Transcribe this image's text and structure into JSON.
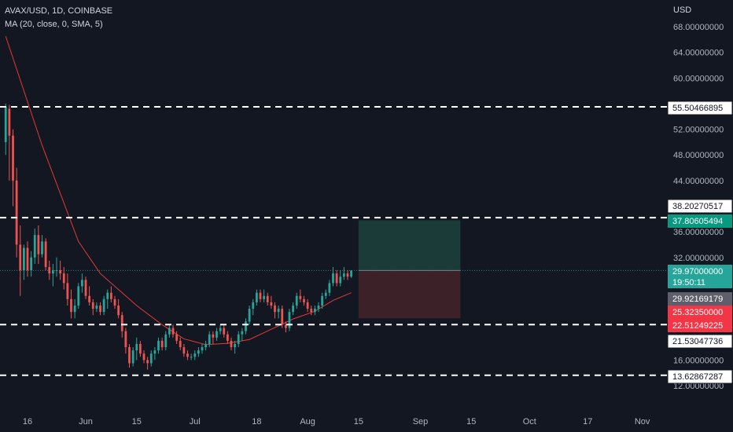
{
  "header": {
    "symbol_line": "AVAX/USD, 1D, COINBASE",
    "indicator_line": "MA (20, close, 0, SMA, 5)",
    "currency": "USD"
  },
  "colors": {
    "background": "#131722",
    "up": "#26a69a",
    "down": "#ef5350",
    "ma": "#e53935",
    "target_zone": "#1b3b38",
    "stop_zone": "#3d2129",
    "levels": "#ffffff",
    "axis_text": "#b2b5be"
  },
  "chart_data": {
    "type": "candlestick",
    "title": "AVAX/USD, 1D, COINBASE",
    "ylabel": "USD",
    "ylim": [
      11.2,
      70.5
    ],
    "y_ticks": [
      "68.00000000",
      "64.00000000",
      "60.00000000",
      "52.00000000",
      "48.00000000",
      "44.00000000",
      "36.00000000",
      "32.00000000",
      "16.00000000",
      "12.00000000"
    ],
    "x_ticks": [
      "16",
      "Jun",
      "15",
      "Jul",
      "18",
      "Aug",
      "15",
      "Sep",
      "15",
      "Oct",
      "17",
      "Nov"
    ],
    "ma_settings": {
      "length": 20,
      "source": "close",
      "offset": 0,
      "type": "SMA"
    },
    "start_date": "2022-05-10",
    "candles": [
      {
        "date": "2022-05-10",
        "o": 50.0,
        "h": 56.0,
        "l": 48.0,
        "c": 55.5
      },
      {
        "date": "2022-05-11",
        "o": 55.2,
        "h": 55.8,
        "l": 44.0,
        "c": 51.0
      },
      {
        "date": "2022-05-12",
        "o": 51.0,
        "h": 52.0,
        "l": 40.0,
        "c": 44.0
      },
      {
        "date": "2022-05-13",
        "o": 44.0,
        "h": 46.0,
        "l": 32.0,
        "c": 34.0
      },
      {
        "date": "2022-05-14",
        "o": 34.0,
        "h": 37.0,
        "l": 26.0,
        "c": 30.0
      },
      {
        "date": "2022-05-15",
        "o": 30.0,
        "h": 34.0,
        "l": 28.5,
        "c": 33.5
      },
      {
        "date": "2022-05-16",
        "o": 33.5,
        "h": 34.5,
        "l": 29.0,
        "c": 30.0
      },
      {
        "date": "2022-05-17",
        "o": 30.0,
        "h": 33.0,
        "l": 29.0,
        "c": 32.0
      },
      {
        "date": "2022-05-18",
        "o": 32.0,
        "h": 36.5,
        "l": 31.0,
        "c": 35.5
      },
      {
        "date": "2022-05-19",
        "o": 35.5,
        "h": 37.0,
        "l": 31.0,
        "c": 32.5
      },
      {
        "date": "2022-05-20",
        "o": 32.5,
        "h": 35.5,
        "l": 32.0,
        "c": 34.5
      },
      {
        "date": "2022-05-21",
        "o": 34.5,
        "h": 35.0,
        "l": 30.0,
        "c": 30.5
      },
      {
        "date": "2022-05-22",
        "o": 30.5,
        "h": 31.5,
        "l": 28.5,
        "c": 29.5
      },
      {
        "date": "2022-05-23",
        "o": 29.5,
        "h": 31.0,
        "l": 27.5,
        "c": 30.0
      },
      {
        "date": "2022-05-24",
        "o": 30.0,
        "h": 32.0,
        "l": 29.0,
        "c": 30.0
      },
      {
        "date": "2022-05-25",
        "o": 30.0,
        "h": 31.5,
        "l": 28.5,
        "c": 29.5
      },
      {
        "date": "2022-05-26",
        "o": 29.5,
        "h": 30.5,
        "l": 27.0,
        "c": 28.0
      },
      {
        "date": "2022-05-27",
        "o": 28.0,
        "h": 29.5,
        "l": 24.5,
        "c": 25.5
      },
      {
        "date": "2022-05-28",
        "o": 25.5,
        "h": 27.0,
        "l": 22.5,
        "c": 23.5
      },
      {
        "date": "2022-05-29",
        "o": 23.5,
        "h": 25.5,
        "l": 22.5,
        "c": 24.5
      },
      {
        "date": "2022-05-30",
        "o": 24.5,
        "h": 28.0,
        "l": 24.0,
        "c": 27.5
      },
      {
        "date": "2022-05-31",
        "o": 27.5,
        "h": 29.5,
        "l": 26.5,
        "c": 28.5
      },
      {
        "date": "2022-06-01",
        "o": 28.5,
        "h": 29.0,
        "l": 25.5,
        "c": 26.0
      },
      {
        "date": "2022-06-02",
        "o": 26.0,
        "h": 27.5,
        "l": 24.5,
        "c": 25.0
      },
      {
        "date": "2022-06-03",
        "o": 25.0,
        "h": 25.5,
        "l": 23.0,
        "c": 24.0
      },
      {
        "date": "2022-06-04",
        "o": 24.0,
        "h": 25.0,
        "l": 23.5,
        "c": 24.5
      },
      {
        "date": "2022-06-05",
        "o": 24.5,
        "h": 25.0,
        "l": 23.0,
        "c": 23.5
      },
      {
        "date": "2022-06-06",
        "o": 23.5,
        "h": 26.0,
        "l": 23.0,
        "c": 25.5
      },
      {
        "date": "2022-06-07",
        "o": 25.5,
        "h": 27.0,
        "l": 24.0,
        "c": 26.5
      },
      {
        "date": "2022-06-08",
        "o": 26.5,
        "h": 27.5,
        "l": 25.0,
        "c": 25.5
      },
      {
        "date": "2022-06-09",
        "o": 25.5,
        "h": 26.0,
        "l": 24.0,
        "c": 24.5
      },
      {
        "date": "2022-06-10",
        "o": 24.5,
        "h": 25.5,
        "l": 22.5,
        "c": 23.0
      },
      {
        "date": "2022-06-11",
        "o": 23.0,
        "h": 23.5,
        "l": 19.5,
        "c": 20.5
      },
      {
        "date": "2022-06-12",
        "o": 20.5,
        "h": 21.0,
        "l": 17.0,
        "c": 18.0
      },
      {
        "date": "2022-06-13",
        "o": 18.0,
        "h": 18.5,
        "l": 14.8,
        "c": 15.5
      },
      {
        "date": "2022-06-14",
        "o": 15.5,
        "h": 18.0,
        "l": 15.0,
        "c": 17.5
      },
      {
        "date": "2022-06-15",
        "o": 17.5,
        "h": 19.5,
        "l": 16.0,
        "c": 18.5
      },
      {
        "date": "2022-06-16",
        "o": 18.5,
        "h": 19.0,
        "l": 16.5,
        "c": 17.0
      },
      {
        "date": "2022-06-17",
        "o": 17.0,
        "h": 17.5,
        "l": 15.5,
        "c": 16.0
      },
      {
        "date": "2022-06-18",
        "o": 16.0,
        "h": 16.5,
        "l": 14.5,
        "c": 15.5
      },
      {
        "date": "2022-06-19",
        "o": 15.5,
        "h": 17.5,
        "l": 15.0,
        "c": 17.0
      },
      {
        "date": "2022-06-20",
        "o": 17.0,
        "h": 18.0,
        "l": 16.0,
        "c": 17.5
      },
      {
        "date": "2022-06-21",
        "o": 17.5,
        "h": 19.5,
        "l": 17.0,
        "c": 19.0
      },
      {
        "date": "2022-06-22",
        "o": 19.0,
        "h": 19.5,
        "l": 17.5,
        "c": 18.0
      },
      {
        "date": "2022-06-23",
        "o": 18.0,
        "h": 20.5,
        "l": 17.5,
        "c": 20.0
      },
      {
        "date": "2022-06-24",
        "o": 20.0,
        "h": 21.5,
        "l": 19.5,
        "c": 21.0
      },
      {
        "date": "2022-06-25",
        "o": 21.0,
        "h": 21.5,
        "l": 19.5,
        "c": 20.0
      },
      {
        "date": "2022-06-26",
        "o": 20.0,
        "h": 20.5,
        "l": 18.5,
        "c": 19.0
      },
      {
        "date": "2022-06-27",
        "o": 19.0,
        "h": 19.5,
        "l": 17.5,
        "c": 18.0
      },
      {
        "date": "2022-06-28",
        "o": 18.0,
        "h": 18.5,
        "l": 16.5,
        "c": 17.0
      },
      {
        "date": "2022-06-29",
        "o": 17.0,
        "h": 17.5,
        "l": 16.0,
        "c": 16.5
      },
      {
        "date": "2022-06-30",
        "o": 16.5,
        "h": 17.0,
        "l": 16.0,
        "c": 16.5
      },
      {
        "date": "2022-07-01",
        "o": 16.5,
        "h": 17.5,
        "l": 16.0,
        "c": 17.0
      },
      {
        "date": "2022-07-02",
        "o": 17.0,
        "h": 18.0,
        "l": 16.5,
        "c": 17.5
      },
      {
        "date": "2022-07-03",
        "o": 17.5,
        "h": 18.5,
        "l": 17.0,
        "c": 18.0
      },
      {
        "date": "2022-07-04",
        "o": 18.0,
        "h": 19.0,
        "l": 17.5,
        "c": 18.5
      },
      {
        "date": "2022-07-05",
        "o": 18.5,
        "h": 20.5,
        "l": 18.0,
        "c": 20.0
      },
      {
        "date": "2022-07-06",
        "o": 20.0,
        "h": 20.5,
        "l": 18.5,
        "c": 19.5
      },
      {
        "date": "2022-07-07",
        "o": 19.5,
        "h": 21.0,
        "l": 19.0,
        "c": 20.5
      },
      {
        "date": "2022-07-08",
        "o": 20.5,
        "h": 21.5,
        "l": 20.0,
        "c": 21.0
      },
      {
        "date": "2022-07-09",
        "o": 21.0,
        "h": 21.5,
        "l": 19.5,
        "c": 20.0
      },
      {
        "date": "2022-07-10",
        "o": 20.0,
        "h": 20.5,
        "l": 18.5,
        "c": 19.0
      },
      {
        "date": "2022-07-11",
        "o": 19.0,
        "h": 19.5,
        "l": 17.5,
        "c": 18.0
      },
      {
        "date": "2022-07-12",
        "o": 18.0,
        "h": 19.0,
        "l": 17.0,
        "c": 18.5
      },
      {
        "date": "2022-07-13",
        "o": 18.5,
        "h": 20.5,
        "l": 18.0,
        "c": 20.0
      },
      {
        "date": "2022-07-14",
        "o": 20.0,
        "h": 21.0,
        "l": 19.0,
        "c": 20.5
      },
      {
        "date": "2022-07-15",
        "o": 20.5,
        "h": 22.5,
        "l": 20.0,
        "c": 22.0
      },
      {
        "date": "2022-07-16",
        "o": 22.0,
        "h": 24.5,
        "l": 21.5,
        "c": 24.0
      },
      {
        "date": "2022-07-17",
        "o": 24.0,
        "h": 25.5,
        "l": 23.0,
        "c": 25.0
      },
      {
        "date": "2022-07-18",
        "o": 25.0,
        "h": 27.0,
        "l": 24.5,
        "c": 26.5
      },
      {
        "date": "2022-07-19",
        "o": 26.5,
        "h": 27.0,
        "l": 25.0,
        "c": 25.5
      },
      {
        "date": "2022-07-20",
        "o": 25.5,
        "h": 27.0,
        "l": 25.0,
        "c": 26.0
      },
      {
        "date": "2022-07-21",
        "o": 26.0,
        "h": 26.5,
        "l": 24.5,
        "c": 25.0
      },
      {
        "date": "2022-07-22",
        "o": 25.0,
        "h": 26.0,
        "l": 24.0,
        "c": 24.5
      },
      {
        "date": "2022-07-23",
        "o": 24.5,
        "h": 25.0,
        "l": 22.5,
        "c": 23.5
      },
      {
        "date": "2022-07-24",
        "o": 23.5,
        "h": 24.5,
        "l": 22.5,
        "c": 24.0
      },
      {
        "date": "2022-07-25",
        "o": 24.0,
        "h": 24.5,
        "l": 21.0,
        "c": 21.5
      },
      {
        "date": "2022-07-26",
        "o": 21.5,
        "h": 22.0,
        "l": 20.3,
        "c": 21.0
      },
      {
        "date": "2022-07-27",
        "o": 21.0,
        "h": 24.0,
        "l": 20.5,
        "c": 23.5
      },
      {
        "date": "2022-07-28",
        "o": 23.5,
        "h": 25.0,
        "l": 23.0,
        "c": 24.5
      },
      {
        "date": "2022-07-29",
        "o": 24.5,
        "h": 26.5,
        "l": 24.0,
        "c": 26.0
      },
      {
        "date": "2022-07-30",
        "o": 26.0,
        "h": 27.0,
        "l": 25.0,
        "c": 25.5
      },
      {
        "date": "2022-07-31",
        "o": 25.5,
        "h": 26.0,
        "l": 24.5,
        "c": 25.0
      },
      {
        "date": "2022-08-01",
        "o": 25.0,
        "h": 25.5,
        "l": 23.5,
        "c": 24.0
      },
      {
        "date": "2022-08-02",
        "o": 24.0,
        "h": 24.5,
        "l": 23.0,
        "c": 23.5
      },
      {
        "date": "2022-08-03",
        "o": 23.5,
        "h": 24.5,
        "l": 23.0,
        "c": 24.0
      },
      {
        "date": "2022-08-04",
        "o": 24.0,
        "h": 25.0,
        "l": 23.5,
        "c": 24.5
      },
      {
        "date": "2022-08-05",
        "o": 24.5,
        "h": 26.5,
        "l": 24.0,
        "c": 26.0
      },
      {
        "date": "2022-08-06",
        "o": 26.0,
        "h": 27.0,
        "l": 25.5,
        "c": 26.5
      },
      {
        "date": "2022-08-07",
        "o": 26.5,
        "h": 28.5,
        "l": 26.0,
        "c": 28.0
      },
      {
        "date": "2022-08-08",
        "o": 28.0,
        "h": 30.5,
        "l": 27.5,
        "c": 29.5
      },
      {
        "date": "2022-08-09",
        "o": 29.5,
        "h": 30.0,
        "l": 27.5,
        "c": 28.0
      },
      {
        "date": "2022-08-10",
        "o": 28.0,
        "h": 30.0,
        "l": 27.5,
        "c": 29.0
      },
      {
        "date": "2022-08-11",
        "o": 29.0,
        "h": 30.5,
        "l": 28.5,
        "c": 29.5
      },
      {
        "date": "2022-08-12",
        "o": 29.5,
        "h": 30.0,
        "l": 28.5,
        "c": 29.0
      },
      {
        "date": "2022-08-13",
        "o": 29.0,
        "h": 30.0,
        "l": 28.8,
        "c": 29.97
      }
    ],
    "ma_points": [
      {
        "date": "2022-05-10",
        "v": 66.5
      },
      {
        "date": "2022-05-20",
        "v": 49.5
      },
      {
        "date": "2022-05-30",
        "v": 34.5
      },
      {
        "date": "2022-06-05",
        "v": 29.5
      },
      {
        "date": "2022-06-15",
        "v": 24.5
      },
      {
        "date": "2022-06-22",
        "v": 21.5
      },
      {
        "date": "2022-06-28",
        "v": 19.3
      },
      {
        "date": "2022-07-04",
        "v": 18.4
      },
      {
        "date": "2022-07-10",
        "v": 18.6
      },
      {
        "date": "2022-07-16",
        "v": 19.2
      },
      {
        "date": "2022-07-22",
        "v": 20.8
      },
      {
        "date": "2022-07-28",
        "v": 22.4
      },
      {
        "date": "2022-08-03",
        "v": 23.6
      },
      {
        "date": "2022-08-08",
        "v": 25.3
      },
      {
        "date": "2022-08-13",
        "v": 26.5
      }
    ],
    "horizontal_levels": [
      55.50466895,
      38.20270517,
      21.53047736,
      13.62867287
    ],
    "position": {
      "entry": 29.97,
      "target": 37.80605494,
      "stop": 22.51249225,
      "start_date": "2022-08-15",
      "end_date": "2022-09-12"
    },
    "price_badges": [
      {
        "label": "55.50466895",
        "value": 55.50466895,
        "style": "level"
      },
      {
        "label": "38.20270517",
        "value": 38.20270517,
        "style": "level"
      },
      {
        "label": "37.80605494",
        "value": 37.80605494,
        "style": "target"
      },
      {
        "label": "29.97000000",
        "sub": "19:50:11",
        "value": 29.97,
        "style": "last"
      },
      {
        "label": "29.92169179",
        "value": 29.92169179,
        "style": "ma"
      },
      {
        "label": "25.32350000",
        "value": 25.3235,
        "style": "stop-a"
      },
      {
        "label": "22.51249225",
        "value": 22.51249225,
        "style": "stop-b"
      },
      {
        "label": "21.53047736",
        "value": 21.53047736,
        "style": "level"
      },
      {
        "label": "13.62867287",
        "value": 13.62867287,
        "style": "level"
      }
    ]
  }
}
